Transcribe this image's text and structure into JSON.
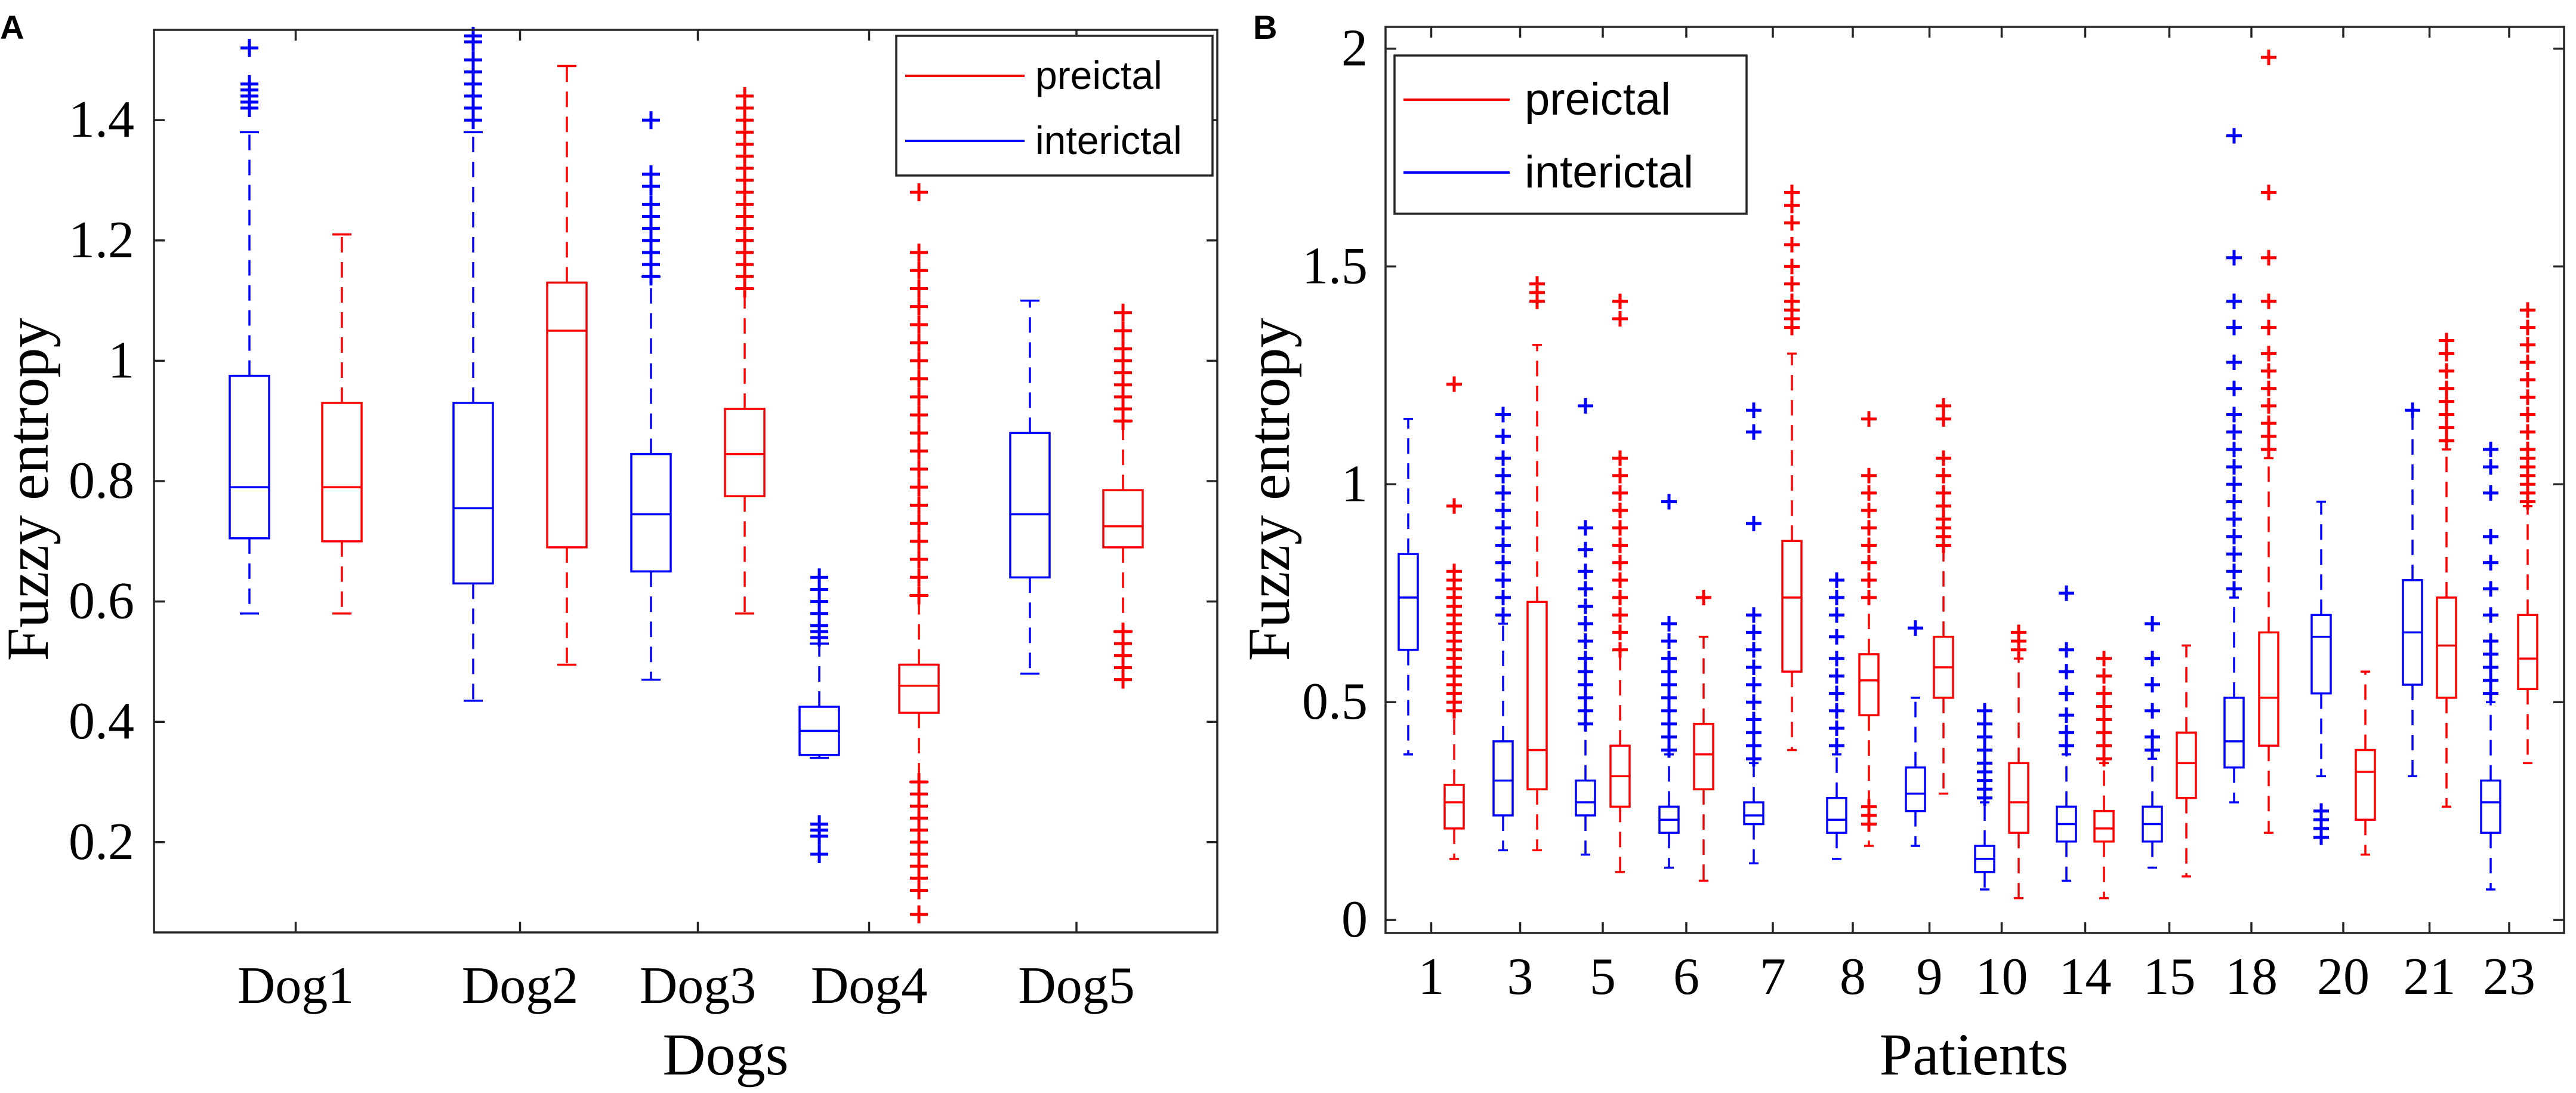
{
  "colors": {
    "preictal": "#ff0000",
    "interictal": "#0000ff",
    "axis": "#262626"
  },
  "chart_data": [
    {
      "panel_label": "A",
      "type": "boxplot",
      "xlabel": "Dogs",
      "ylabel": "Fuzzy entropy",
      "ylim": [
        0.05,
        1.55
      ],
      "yticks": [
        0.2,
        0.4,
        0.6,
        0.8,
        1,
        1.2,
        1.4
      ],
      "ytick_labels": [
        "0.2",
        "0.4",
        "0.6",
        "0.8",
        "1",
        "1.2",
        "1.4"
      ],
      "categories": [
        "Dog1",
        "Dog2",
        "Dog3",
        "Dog4",
        "Dog5"
      ],
      "legend": {
        "position": "top-right",
        "entries": [
          "preictal",
          "interictal"
        ]
      },
      "groups": [
        {
          "category": "Dog1",
          "interictal": {
            "min": 0.58,
            "q1": 0.705,
            "median": 0.79,
            "q3": 0.975,
            "max": 1.38,
            "outliers": [
              1.42,
              1.43,
              1.44,
              1.45,
              1.46,
              1.52
            ]
          },
          "preictal": {
            "min": 0.58,
            "q1": 0.7,
            "median": 0.79,
            "q3": 0.93,
            "max": 1.21,
            "outliers": []
          }
        },
        {
          "category": "Dog2",
          "interictal": {
            "min": 0.435,
            "q1": 0.63,
            "median": 0.755,
            "q3": 0.93,
            "max": 1.38,
            "outliers": [
              1.4,
              1.42,
              1.44,
              1.46,
              1.48,
              1.5,
              1.53,
              1.54
            ]
          },
          "preictal": {
            "min": 0.495,
            "q1": 0.69,
            "median": 1.05,
            "q3": 1.13,
            "max": 1.49,
            "outliers": []
          }
        },
        {
          "category": "Dog3",
          "interictal": {
            "min": 0.47,
            "q1": 0.65,
            "median": 0.745,
            "q3": 0.845,
            "max": 1.14,
            "outliers": [
              1.14,
              1.16,
              1.18,
              1.2,
              1.22,
              1.24,
              1.26,
              1.29,
              1.31,
              1.4
            ]
          },
          "preictal": {
            "min": 0.58,
            "q1": 0.775,
            "median": 0.845,
            "q3": 0.92,
            "max": 1.12,
            "outliers": [
              1.12,
              1.14,
              1.16,
              1.18,
              1.2,
              1.22,
              1.24,
              1.26,
              1.28,
              1.3,
              1.32,
              1.34,
              1.36,
              1.38,
              1.4,
              1.42,
              1.44
            ]
          }
        },
        {
          "category": "Dog4",
          "interictal": {
            "min": 0.34,
            "q1": 0.345,
            "median": 0.385,
            "q3": 0.425,
            "max": 0.53,
            "outliers": [
              0.18,
              0.21,
              0.22,
              0.23,
              0.54,
              0.55,
              0.56,
              0.58,
              0.6,
              0.62,
              0.64
            ]
          },
          "preictal": {
            "min": 0.3,
            "q1": 0.415,
            "median": 0.46,
            "q3": 0.495,
            "max": 0.61,
            "outliers": [
              0.08,
              0.12,
              0.14,
              0.16,
              0.18,
              0.2,
              0.22,
              0.24,
              0.26,
              0.28,
              0.3,
              0.61,
              0.64,
              0.67,
              0.7,
              0.73,
              0.76,
              0.79,
              0.82,
              0.85,
              0.88,
              0.91,
              0.94,
              0.97,
              1.0,
              1.03,
              1.06,
              1.09,
              1.12,
              1.15,
              1.18,
              1.28
            ]
          }
        },
        {
          "category": "Dog5",
          "interictal": {
            "min": 0.48,
            "q1": 0.64,
            "median": 0.745,
            "q3": 0.88,
            "max": 1.1,
            "outliers": []
          },
          "preictal": {
            "min": 0.55,
            "q1": 0.69,
            "median": 0.725,
            "q3": 0.785,
            "max": 0.9,
            "outliers": [
              0.47,
              0.49,
              0.51,
              0.53,
              0.55,
              0.9,
              0.92,
              0.94,
              0.96,
              0.98,
              1.0,
              1.02,
              1.05,
              1.08
            ]
          }
        }
      ]
    },
    {
      "panel_label": "B",
      "type": "boxplot",
      "xlabel": "Patients",
      "ylabel": "Fuzzy entropy",
      "ylim": [
        -0.03,
        2.05
      ],
      "yticks": [
        0,
        0.5,
        1,
        1.5,
        2
      ],
      "ytick_labels": [
        "0",
        "0.5",
        "1",
        "1.5",
        "2"
      ],
      "categories": [
        "1",
        "3",
        "5",
        "6",
        "7",
        "8",
        "9",
        "10",
        "14",
        "15",
        "18",
        "20",
        "21",
        "23"
      ],
      "legend": {
        "position": "top-left",
        "entries": [
          "preictal",
          "interictal"
        ]
      },
      "groups": [
        {
          "category": "1",
          "interictal": {
            "min": 0.38,
            "q1": 0.62,
            "median": 0.74,
            "q3": 0.84,
            "max": 1.15,
            "outliers": []
          },
          "preictal": {
            "min": 0.14,
            "q1": 0.21,
            "median": 0.27,
            "q3": 0.31,
            "max": 0.48,
            "outliers": [
              0.48,
              0.5,
              0.52,
              0.54,
              0.56,
              0.58,
              0.6,
              0.62,
              0.64,
              0.66,
              0.68,
              0.7,
              0.72,
              0.74,
              0.76,
              0.78,
              0.8,
              0.95,
              1.23
            ]
          }
        },
        {
          "category": "3",
          "interictal": {
            "min": 0.16,
            "q1": 0.24,
            "median": 0.32,
            "q3": 0.41,
            "max": 0.68,
            "outliers": [
              0.7,
              0.74,
              0.78,
              0.82,
              0.86,
              0.9,
              0.94,
              0.98,
              1.02,
              1.06,
              1.11,
              1.16
            ]
          },
          "preictal": {
            "min": 0.16,
            "q1": 0.3,
            "median": 0.39,
            "q3": 0.73,
            "max": 1.32,
            "outliers": [
              1.42,
              1.44,
              1.46
            ]
          }
        },
        {
          "category": "5",
          "interictal": {
            "min": 0.15,
            "q1": 0.24,
            "median": 0.27,
            "q3": 0.32,
            "max": 0.45,
            "outliers": [
              0.45,
              0.48,
              0.51,
              0.54,
              0.57,
              0.6,
              0.64,
              0.68,
              0.72,
              0.76,
              0.8,
              0.85,
              0.9,
              1.18
            ]
          },
          "preictal": {
            "min": 0.11,
            "q1": 0.26,
            "median": 0.33,
            "q3": 0.4,
            "max": 0.62,
            "outliers": [
              0.62,
              0.66,
              0.7,
              0.74,
              0.78,
              0.82,
              0.86,
              0.9,
              0.94,
              0.98,
              1.02,
              1.06,
              1.38,
              1.42
            ]
          }
        },
        {
          "category": "6",
          "interictal": {
            "min": 0.12,
            "q1": 0.2,
            "median": 0.23,
            "q3": 0.26,
            "max": 0.38,
            "outliers": [
              0.39,
              0.42,
              0.45,
              0.48,
              0.51,
              0.54,
              0.57,
              0.6,
              0.64,
              0.68,
              0.96
            ]
          },
          "preictal": {
            "min": 0.09,
            "q1": 0.3,
            "median": 0.38,
            "q3": 0.45,
            "max": 0.65,
            "outliers": [
              0.74
            ]
          }
        },
        {
          "category": "7",
          "interictal": {
            "min": 0.13,
            "q1": 0.22,
            "median": 0.24,
            "q3": 0.27,
            "max": 0.36,
            "outliers": [
              0.37,
              0.4,
              0.43,
              0.46,
              0.5,
              0.54,
              0.58,
              0.62,
              0.66,
              0.7,
              0.91,
              1.12,
              1.17
            ]
          },
          "preictal": {
            "min": 0.39,
            "q1": 0.57,
            "median": 0.74,
            "q3": 0.87,
            "max": 1.3,
            "outliers": [
              1.36,
              1.38,
              1.4,
              1.42,
              1.46,
              1.5,
              1.55,
              1.6,
              1.64,
              1.67
            ]
          }
        },
        {
          "category": "8",
          "interictal": {
            "min": 0.14,
            "q1": 0.2,
            "median": 0.23,
            "q3": 0.28,
            "max": 0.38,
            "outliers": [
              0.4,
              0.44,
              0.48,
              0.52,
              0.56,
              0.6,
              0.65,
              0.7,
              0.74,
              0.78
            ]
          },
          "preictal": {
            "min": 0.17,
            "q1": 0.47,
            "median": 0.55,
            "q3": 0.61,
            "max": 0.74,
            "outliers": [
              0.22,
              0.24,
              0.26,
              0.74,
              0.78,
              0.82,
              0.86,
              0.9,
              0.94,
              0.98,
              1.02,
              1.15
            ]
          }
        },
        {
          "category": "9",
          "interictal": {
            "min": 0.17,
            "q1": 0.25,
            "median": 0.29,
            "q3": 0.35,
            "max": 0.51,
            "outliers": [
              0.67
            ]
          },
          "preictal": {
            "min": 0.29,
            "q1": 0.51,
            "median": 0.58,
            "q3": 0.65,
            "max": 0.86,
            "outliers": [
              0.86,
              0.88,
              0.9,
              0.92,
              0.95,
              0.98,
              1.02,
              1.06,
              1.15,
              1.18
            ]
          }
        },
        {
          "category": "10",
          "interictal": {
            "min": 0.07,
            "q1": 0.11,
            "median": 0.14,
            "q3": 0.17,
            "max": 0.27,
            "outliers": [
              0.28,
              0.3,
              0.32,
              0.34,
              0.36,
              0.39,
              0.42,
              0.45,
              0.48
            ]
          },
          "preictal": {
            "min": 0.05,
            "q1": 0.2,
            "median": 0.27,
            "q3": 0.36,
            "max": 0.6,
            "outliers": [
              0.62,
              0.64,
              0.66
            ]
          }
        },
        {
          "category": "14",
          "interictal": {
            "min": 0.09,
            "q1": 0.18,
            "median": 0.22,
            "q3": 0.26,
            "max": 0.38,
            "outliers": [
              0.4,
              0.43,
              0.47,
              0.52,
              0.57,
              0.62,
              0.75
            ]
          },
          "preictal": {
            "min": 0.05,
            "q1": 0.18,
            "median": 0.21,
            "q3": 0.25,
            "max": 0.36,
            "outliers": [
              0.37,
              0.4,
              0.43,
              0.46,
              0.49,
              0.52,
              0.56,
              0.6
            ]
          }
        },
        {
          "category": "15",
          "interictal": {
            "min": 0.12,
            "q1": 0.18,
            "median": 0.22,
            "q3": 0.26,
            "max": 0.37,
            "outliers": [
              0.39,
              0.42,
              0.48,
              0.54,
              0.6,
              0.68
            ]
          },
          "preictal": {
            "min": 0.1,
            "q1": 0.28,
            "median": 0.36,
            "q3": 0.43,
            "max": 0.63,
            "outliers": []
          }
        },
        {
          "category": "18",
          "interictal": {
            "min": 0.27,
            "q1": 0.35,
            "median": 0.41,
            "q3": 0.51,
            "max": 0.74,
            "outliers": [
              0.76,
              0.8,
              0.84,
              0.88,
              0.92,
              0.96,
              1.0,
              1.04,
              1.08,
              1.12,
              1.16,
              1.22,
              1.28,
              1.36,
              1.42,
              1.52,
              1.8
            ]
          },
          "preictal": {
            "min": 0.2,
            "q1": 0.4,
            "median": 0.51,
            "q3": 0.66,
            "max": 1.06,
            "outliers": [
              1.08,
              1.11,
              1.14,
              1.18,
              1.22,
              1.26,
              1.3,
              1.36,
              1.42,
              1.52,
              1.67,
              1.98
            ]
          }
        },
        {
          "category": "20",
          "interictal": {
            "min": 0.33,
            "q1": 0.52,
            "median": 0.65,
            "q3": 0.7,
            "max": 0.96,
            "outliers": [
              0.19,
              0.21,
              0.23,
              0.25
            ]
          },
          "preictal": {
            "min": 0.15,
            "q1": 0.23,
            "median": 0.34,
            "q3": 0.39,
            "max": 0.57,
            "outliers": []
          }
        },
        {
          "category": "21",
          "interictal": {
            "min": 0.33,
            "q1": 0.54,
            "median": 0.66,
            "q3": 0.78,
            "max": 1.17,
            "outliers": [
              1.17
            ]
          },
          "preictal": {
            "min": 0.26,
            "q1": 0.51,
            "median": 0.63,
            "q3": 0.74,
            "max": 1.08,
            "outliers": [
              1.1,
              1.13,
              1.16,
              1.19,
              1.22,
              1.26,
              1.3,
              1.33
            ]
          }
        },
        {
          "category": "23",
          "interictal": {
            "min": 0.07,
            "q1": 0.2,
            "median": 0.27,
            "q3": 0.32,
            "max": 0.5,
            "outliers": [
              0.52,
              0.55,
              0.58,
              0.61,
              0.64,
              0.7,
              0.76,
              0.82,
              0.88,
              0.98,
              1.04,
              1.08
            ]
          },
          "preictal": {
            "min": 0.36,
            "q1": 0.53,
            "median": 0.6,
            "q3": 0.7,
            "max": 0.95,
            "outliers": [
              0.96,
              0.98,
              1.0,
              1.02,
              1.04,
              1.06,
              1.08,
              1.12,
              1.16,
              1.2,
              1.24,
              1.28,
              1.32,
              1.36,
              1.4
            ]
          }
        }
      ]
    }
  ]
}
